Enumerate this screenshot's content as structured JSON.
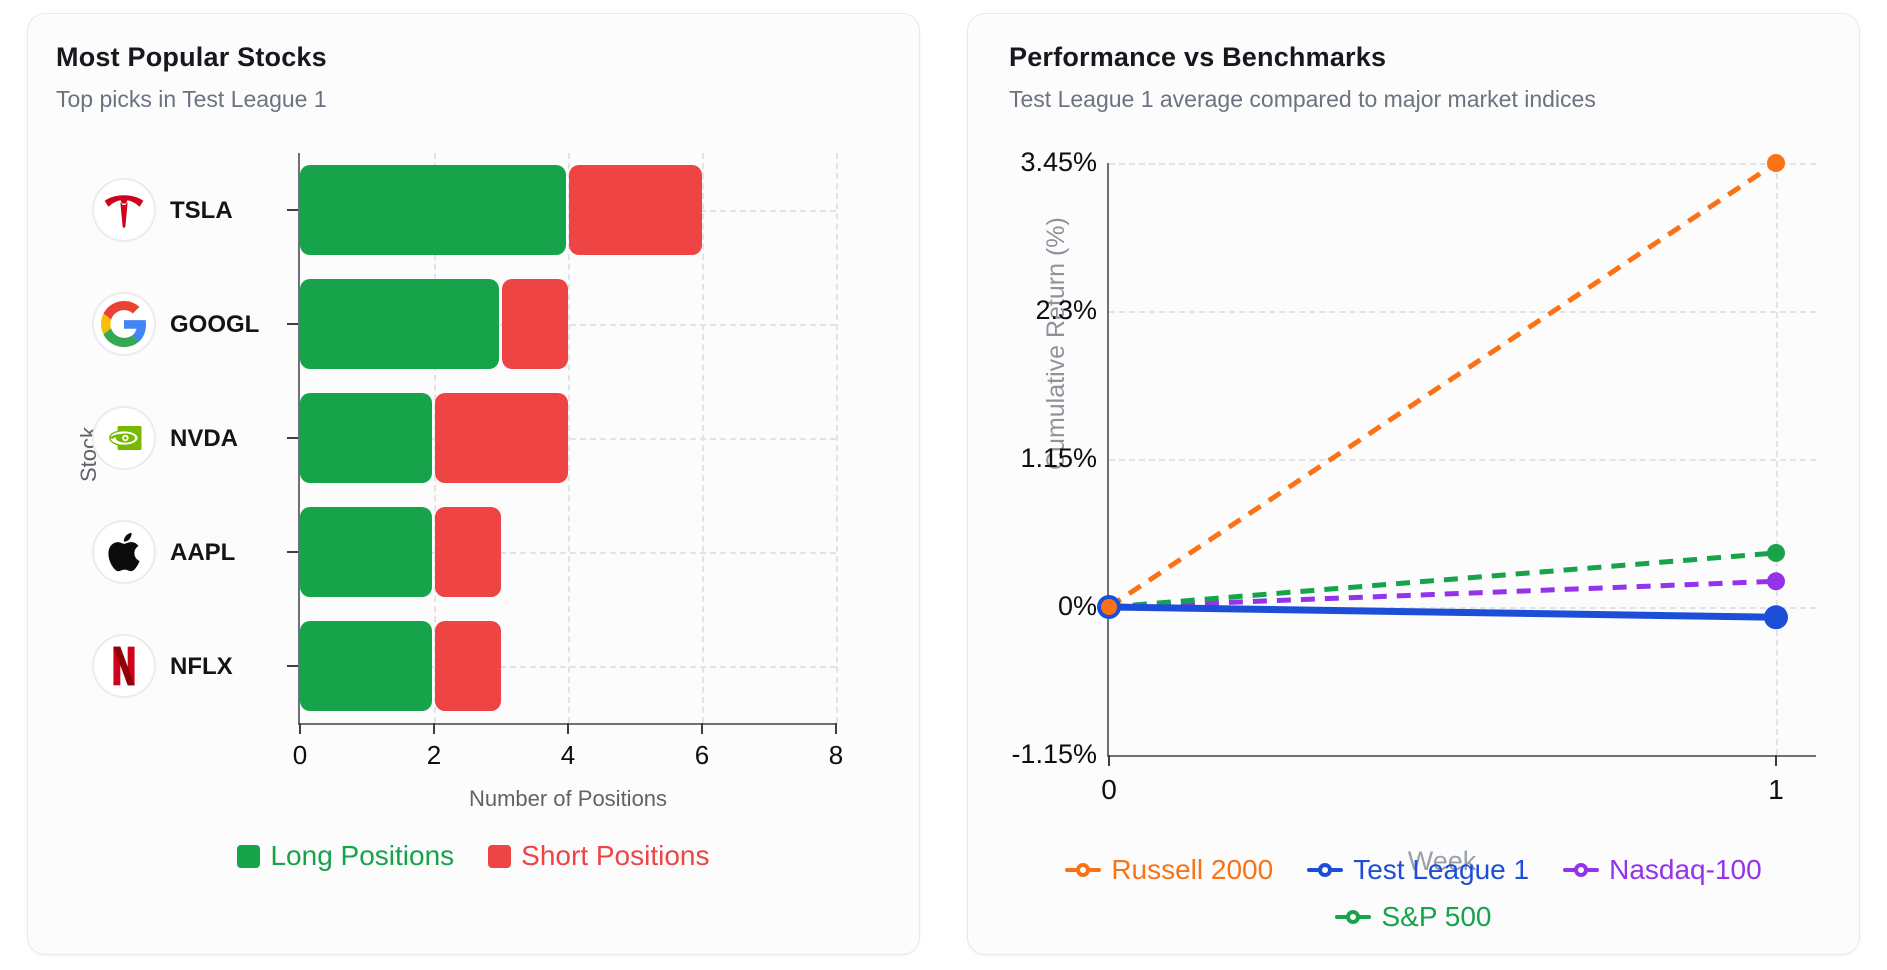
{
  "left_card": {
    "title": "Most Popular Stocks",
    "subtitle": "Top picks in Test League 1"
  },
  "right_card": {
    "title": "Performance vs Benchmarks",
    "subtitle": "Test League 1 average compared to major market indices"
  },
  "chart_data": [
    {
      "type": "bar",
      "orientation": "horizontal",
      "stacked": true,
      "title": "Most Popular Stocks",
      "subtitle": "Top picks in Test League 1",
      "categories": [
        "TSLA",
        "GOOGL",
        "NVDA",
        "AAPL",
        "NFLX"
      ],
      "category_icons": [
        "tesla-logo",
        "google-logo",
        "nvidia-logo",
        "apple-logo",
        "netflix-logo"
      ],
      "series": [
        {
          "name": "Long Positions",
          "color": "#16a34a",
          "values": [
            4,
            3,
            2,
            2,
            2
          ]
        },
        {
          "name": "Short Positions",
          "color": "#ef4444",
          "values": [
            2,
            1,
            2,
            1,
            1
          ]
        }
      ],
      "xlabel": "Number of Positions",
      "ylabel": "Stock",
      "xlim": [
        0,
        8
      ],
      "x_ticks": [
        0,
        2,
        4,
        6,
        8
      ],
      "grid": true,
      "legend_position": "bottom"
    },
    {
      "type": "line",
      "title": "Performance vs Benchmarks",
      "subtitle": "Test League 1 average compared to major market indices",
      "x": [
        0,
        1
      ],
      "x_ticks": [
        "0",
        "1"
      ],
      "xlabel": "Week",
      "ylabel": "Cumulative Return (%)",
      "ylim": [
        -1.15,
        3.45
      ],
      "y_ticks": [
        "3.45%",
        "2.3%",
        "1.15%",
        "0%",
        "-1.15%"
      ],
      "y_tick_values": [
        3.45,
        2.3,
        1.15,
        0,
        -1.15
      ],
      "grid": true,
      "legend_position": "bottom",
      "series": [
        {
          "name": "Russell 2000",
          "color": "#f97316",
          "style": "dashed",
          "values": [
            0,
            3.45
          ]
        },
        {
          "name": "Test League 1",
          "color": "#1d4ed8",
          "style": "solid",
          "values": [
            0,
            -0.08
          ]
        },
        {
          "name": "Nasdaq-100",
          "color": "#9333ea",
          "style": "dashed",
          "values": [
            0,
            0.2
          ]
        },
        {
          "name": "S&P 500",
          "color": "#16a34a",
          "style": "dashed",
          "values": [
            0,
            0.42
          ]
        }
      ],
      "legend_rows": [
        [
          "Russell 2000",
          "Test League 1",
          "Nasdaq-100"
        ],
        [
          "S&P 500"
        ]
      ]
    }
  ]
}
